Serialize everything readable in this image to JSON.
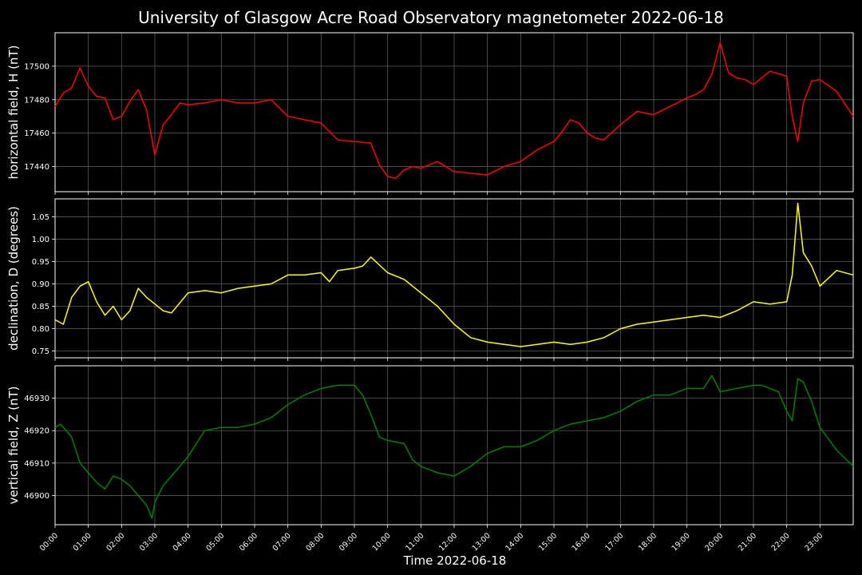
{
  "chart_data": {
    "type": "line",
    "title": "University of Glasgow Acre Road Observatory magnetometer 2022-06-18",
    "xlabel": "Time 2022-06-18",
    "x_ticks": [
      "00:00",
      "01:00",
      "02:00",
      "03:00",
      "04:00",
      "05:00",
      "06:00",
      "07:00",
      "08:00",
      "09:00",
      "10:00",
      "11:00",
      "12:00",
      "13:00",
      "14:00",
      "15:00",
      "16:00",
      "17:00",
      "18:00",
      "19:00",
      "20:00",
      "21:00",
      "22:00",
      "23:00"
    ],
    "xlim": [
      "00:00",
      "24:00"
    ],
    "grid": true,
    "panels": [
      {
        "ylabel": "horizontal field, H (nT)",
        "color": "#ff0000",
        "ylim": [
          17425,
          17520
        ],
        "yticks": [
          17440,
          17460,
          17480,
          17500
        ],
        "x": [
          "00:00",
          "00:15",
          "00:30",
          "00:45",
          "01:00",
          "01:15",
          "01:30",
          "01:45",
          "02:00",
          "02:15",
          "02:30",
          "02:45",
          "03:00",
          "03:15",
          "03:30",
          "03:45",
          "04:00",
          "04:30",
          "05:00",
          "05:30",
          "06:00",
          "06:30",
          "07:00",
          "07:30",
          "08:00",
          "08:30",
          "09:00",
          "09:30",
          "09:45",
          "10:00",
          "10:15",
          "10:30",
          "10:45",
          "11:00",
          "11:30",
          "12:00",
          "12:30",
          "13:00",
          "13:30",
          "14:00",
          "14:30",
          "15:00",
          "15:15",
          "15:30",
          "15:45",
          "16:00",
          "16:15",
          "16:30",
          "17:00",
          "17:30",
          "18:00",
          "18:30",
          "19:00",
          "19:15",
          "19:30",
          "19:45",
          "20:00",
          "20:15",
          "20:30",
          "20:45",
          "21:00",
          "21:30",
          "22:00",
          "22:10",
          "22:20",
          "22:30",
          "22:45",
          "23:00",
          "23:30",
          "24:00"
        ],
        "y": [
          17476,
          17484,
          17487,
          17499,
          17488,
          17482,
          17481,
          17468,
          17470,
          17479,
          17486,
          17474,
          17447,
          17465,
          17471,
          17478,
          17477,
          17478,
          17480,
          17478,
          17478,
          17480,
          17470,
          17468,
          17466,
          17456,
          17455,
          17454,
          17441,
          17434,
          17433,
          17438,
          17440,
          17439,
          17443,
          17437,
          17436,
          17435,
          17440,
          17443,
          17450,
          17455,
          17461,
          17468,
          17466,
          17460,
          17457,
          17456,
          17465,
          17473,
          17471,
          17476,
          17481,
          17483,
          17486,
          17495,
          17514,
          17496,
          17493,
          17492,
          17489,
          17497,
          17494,
          17470,
          17455,
          17478,
          17491,
          17492,
          17485,
          17470
        ]
      },
      {
        "ylabel": "declination, D (degrees)",
        "color": "#ffff00",
        "ylim": [
          0.735,
          1.09
        ],
        "yticks": [
          0.75,
          0.8,
          0.85,
          0.9,
          0.95,
          1.0,
          1.05
        ],
        "x": [
          "00:00",
          "00:15",
          "00:30",
          "00:45",
          "01:00",
          "01:15",
          "01:30",
          "01:45",
          "02:00",
          "02:15",
          "02:30",
          "02:45",
          "03:00",
          "03:15",
          "03:30",
          "04:00",
          "04:30",
          "05:00",
          "05:30",
          "06:00",
          "06:30",
          "07:00",
          "07:30",
          "08:00",
          "08:15",
          "08:30",
          "09:00",
          "09:15",
          "09:30",
          "10:00",
          "10:30",
          "11:00",
          "11:30",
          "12:00",
          "12:30",
          "13:00",
          "13:30",
          "14:00",
          "14:30",
          "15:00",
          "15:30",
          "16:00",
          "16:30",
          "17:00",
          "17:30",
          "18:00",
          "18:30",
          "19:00",
          "19:30",
          "20:00",
          "20:30",
          "21:00",
          "21:30",
          "22:00",
          "22:10",
          "22:20",
          "22:30",
          "22:45",
          "23:00",
          "23:30",
          "24:00"
        ],
        "y": [
          0.82,
          0.81,
          0.87,
          0.895,
          0.905,
          0.86,
          0.83,
          0.85,
          0.82,
          0.84,
          0.89,
          0.87,
          0.855,
          0.84,
          0.835,
          0.88,
          0.885,
          0.88,
          0.89,
          0.895,
          0.9,
          0.92,
          0.92,
          0.925,
          0.905,
          0.93,
          0.935,
          0.94,
          0.96,
          0.925,
          0.91,
          0.88,
          0.85,
          0.81,
          0.78,
          0.77,
          0.765,
          0.76,
          0.765,
          0.77,
          0.765,
          0.77,
          0.78,
          0.8,
          0.81,
          0.815,
          0.82,
          0.825,
          0.83,
          0.825,
          0.84,
          0.86,
          0.855,
          0.86,
          0.92,
          1.08,
          0.97,
          0.94,
          0.895,
          0.93,
          0.92
        ]
      },
      {
        "ylabel": "vertical field, Z (nT)",
        "color": "#008000",
        "ylim": [
          46891,
          46940
        ],
        "yticks": [
          46900,
          46910,
          46920,
          46930
        ],
        "x": [
          "00:00",
          "00:10",
          "00:30",
          "00:45",
          "01:00",
          "01:15",
          "01:30",
          "01:45",
          "02:00",
          "02:15",
          "02:30",
          "02:45",
          "02:55",
          "03:00",
          "03:15",
          "03:30",
          "04:00",
          "04:30",
          "05:00",
          "05:30",
          "06:00",
          "06:30",
          "07:00",
          "07:30",
          "08:00",
          "08:30",
          "09:00",
          "09:15",
          "09:30",
          "09:45",
          "10:00",
          "10:30",
          "10:45",
          "11:00",
          "11:30",
          "12:00",
          "12:30",
          "13:00",
          "13:30",
          "14:00",
          "14:30",
          "15:00",
          "15:30",
          "16:00",
          "16:30",
          "17:00",
          "17:30",
          "18:00",
          "18:30",
          "19:00",
          "19:30",
          "19:45",
          "20:00",
          "20:30",
          "21:00",
          "21:15",
          "21:30",
          "21:45",
          "22:00",
          "22:10",
          "22:20",
          "22:30",
          "22:45",
          "23:00",
          "23:30",
          "24:00"
        ],
        "y": [
          46921,
          46922,
          46918,
          46910,
          46907,
          46904,
          46902,
          46906,
          46905,
          46903,
          46900,
          46897,
          46893,
          46898,
          46903,
          46906,
          46912,
          46920,
          46921,
          46921,
          46922,
          46924,
          46928,
          46931,
          46933,
          46934,
          46934,
          46931,
          46925,
          46918,
          46917,
          46916,
          46911,
          46909,
          46907,
          46906,
          46909,
          46913,
          46915,
          46915,
          46917,
          46920,
          46922,
          46923,
          46924,
          46926,
          46929,
          46931,
          46931,
          46933,
          46933,
          46937,
          46932,
          46933,
          46934,
          46934,
          46933,
          46932,
          46926,
          46923,
          46936,
          46935,
          46929,
          46921,
          46914,
          46909
        ]
      }
    ]
  }
}
